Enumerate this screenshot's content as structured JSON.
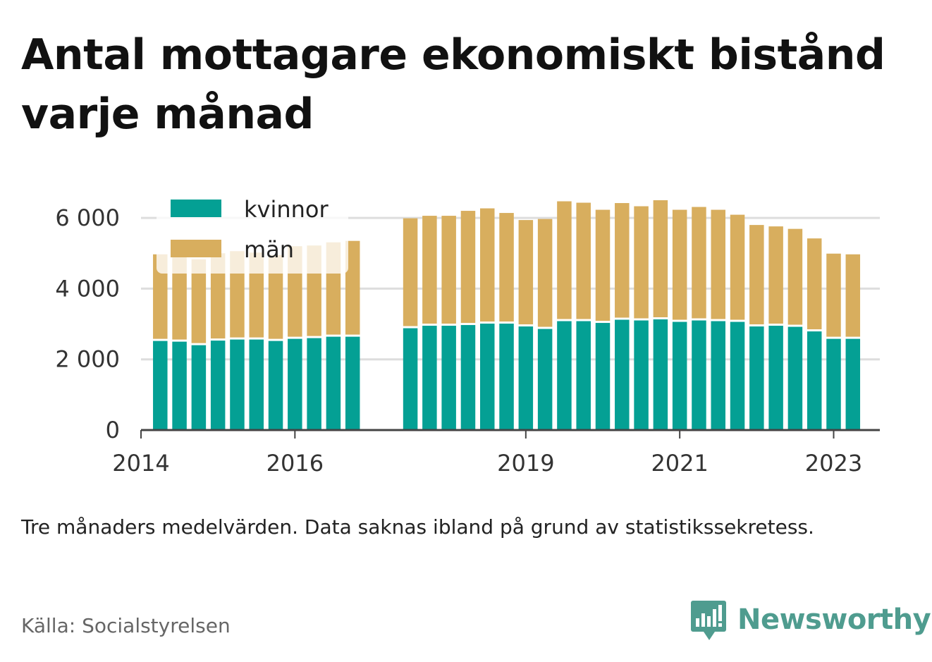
{
  "title": "Antal mottagare ekonomiskt bistånd varje månad",
  "note": "Tre månaders medelvärden. Data saknas ibland på grund av statistikssekretess.",
  "source": "Källa: Socialstyrelsen",
  "brand": {
    "name": "Newsworthy",
    "icon": "newsworthy-logo-icon",
    "color": "#4f9c8f"
  },
  "chart_data": {
    "type": "bar",
    "stacked": true,
    "title": "Antal mottagare ekonomiskt bistånd varje månad",
    "xlabel": "",
    "ylabel": "",
    "ylim": [
      0,
      6600
    ],
    "yticks": [
      0,
      2000,
      4000,
      6000
    ],
    "ytick_labels": [
      "0",
      "2 000",
      "4 000",
      "6 000"
    ],
    "xlim": [
      2014.0,
      2023.6
    ],
    "xticks": [
      2014,
      2016,
      2019,
      2021,
      2023
    ],
    "xtick_labels": [
      "2014",
      "2016",
      "2019",
      "2021",
      "2023"
    ],
    "grid": "horizontal",
    "legend_position": "top-left",
    "x": [
      2014.25,
      2014.5,
      2014.75,
      2015.0,
      2015.25,
      2015.5,
      2015.75,
      2016.0,
      2016.25,
      2016.5,
      2016.75,
      2017.5,
      2017.75,
      2018.0,
      2018.25,
      2018.5,
      2018.75,
      2019.0,
      2019.25,
      2019.5,
      2019.75,
      2020.0,
      2020.25,
      2020.5,
      2020.75,
      2021.0,
      2021.25,
      2021.5,
      2021.75,
      2022.0,
      2022.25,
      2022.5,
      2022.75,
      2023.0,
      2023.25
    ],
    "series": [
      {
        "name": "kvinnor",
        "color": "#04a094",
        "values": [
          2520,
          2500,
          2400,
          2530,
          2560,
          2560,
          2520,
          2580,
          2600,
          2640,
          2640,
          2880,
          2950,
          2950,
          2970,
          3010,
          3010,
          2930,
          2860,
          3080,
          3080,
          3030,
          3120,
          3100,
          3130,
          3060,
          3100,
          3080,
          3060,
          2930,
          2950,
          2920,
          2790,
          2580,
          2580
        ]
      },
      {
        "name": "män",
        "color": "#d8ae5e",
        "values": [
          2450,
          2460,
          2430,
          2470,
          2500,
          2460,
          2430,
          2620,
          2620,
          2670,
          2710,
          3110,
          3110,
          3110,
          3230,
          3260,
          3130,
          3010,
          3110,
          3390,
          3350,
          3200,
          3300,
          3230,
          3370,
          3170,
          3210,
          3150,
          3030,
          2870,
          2810,
          2770,
          2630,
          2410,
          2390
        ]
      }
    ]
  }
}
